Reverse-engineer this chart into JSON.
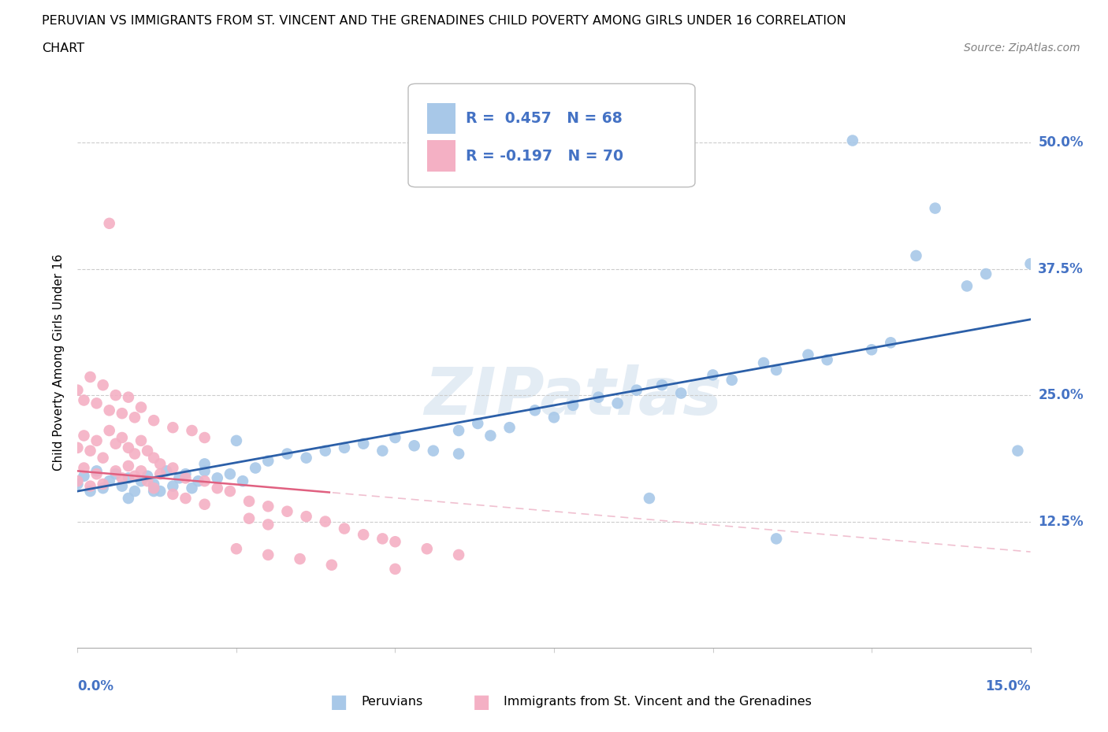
{
  "title_line1": "PERUVIAN VS IMMIGRANTS FROM ST. VINCENT AND THE GRENADINES CHILD POVERTY AMONG GIRLS UNDER 16 CORRELATION",
  "title_line2": "CHART",
  "source": "Source: ZipAtlas.com",
  "ylabel": "Child Poverty Among Girls Under 16",
  "peruvian_R": 0.457,
  "peruvian_N": 68,
  "svg_R": -0.197,
  "svg_N": 70,
  "blue_color": "#a8c8e8",
  "pink_color": "#f4b0c4",
  "trend_blue": "#2b5fa8",
  "trend_pink_solid": "#e06080",
  "trend_pink_dash": "#f0c0d0",
  "y_ticks": [
    0.125,
    0.25,
    0.375,
    0.5
  ],
  "y_tick_labels": [
    "12.5%",
    "25.0%",
    "37.5%",
    "50.0%"
  ],
  "label_color": "#4472c4",
  "xlim": [
    0.0,
    0.15
  ],
  "ylim": [
    0.0,
    0.565
  ],
  "watermark": "ZIPatlas"
}
